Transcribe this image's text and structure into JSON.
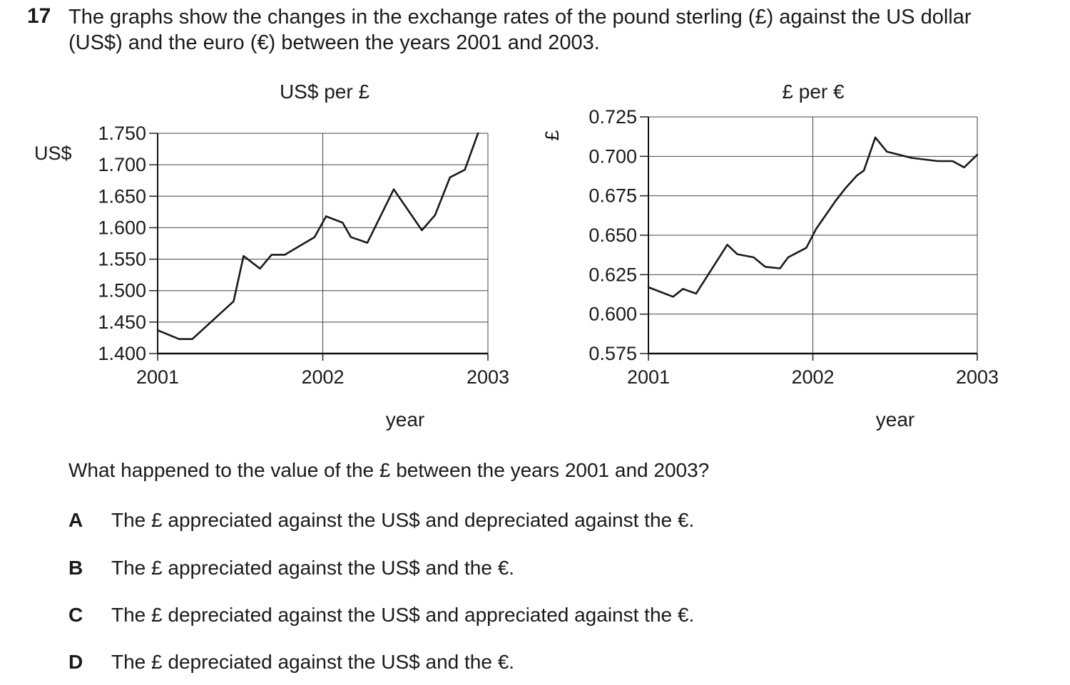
{
  "question": {
    "number": "17",
    "stem": "The graphs show the changes in the exchange rates of the pound sterling (£) against the US dollar (US$) and the euro (€) between the years 2001 and 2003.",
    "prompt": "What happened to the value of the £ between the years 2001 and 2003?",
    "options": [
      {
        "letter": "A",
        "text": "The £ appreciated against the US$ and depreciated against the €."
      },
      {
        "letter": "B",
        "text": "The £ appreciated against the US$ and the €."
      },
      {
        "letter": "C",
        "text": "The £ depreciated against the US$ and appreciated against the €."
      },
      {
        "letter": "D",
        "text": "The £ depreciated against the US$ and the €."
      }
    ]
  },
  "chart_data": [
    {
      "type": "line",
      "title": "US$ per £",
      "ylabel": "US$",
      "xlabel": "year",
      "xlim": [
        2001,
        2003
      ],
      "ylim": [
        1.4,
        1.75
      ],
      "x_ticks": [
        2001,
        2002,
        2003
      ],
      "x_tick_labels": [
        "2001",
        "2002",
        "2003"
      ],
      "y_ticks": [
        1.4,
        1.45,
        1.5,
        1.55,
        1.6,
        1.65,
        1.7,
        1.75
      ],
      "y_tick_labels": [
        "1.400",
        "1.450",
        "1.500",
        "1.550",
        "1.600",
        "1.650",
        "1.700",
        "1.750"
      ],
      "grid": true,
      "x": [
        2001.0,
        2001.13,
        2001.21,
        2001.46,
        2001.52,
        2001.62,
        2001.69,
        2001.77,
        2001.95,
        2002.02,
        2002.12,
        2002.17,
        2002.27,
        2002.43,
        2002.6,
        2002.68,
        2002.77,
        2002.86,
        2002.94
      ],
      "y": [
        1.437,
        1.423,
        1.423,
        1.483,
        1.555,
        1.535,
        1.557,
        1.557,
        1.585,
        1.618,
        1.608,
        1.585,
        1.576,
        1.661,
        1.596,
        1.62,
        1.68,
        1.692,
        1.75
      ]
    },
    {
      "type": "line",
      "title": "£ per €",
      "ylabel": "£",
      "xlabel": "year",
      "xlim": [
        2001,
        2003
      ],
      "ylim": [
        0.575,
        0.725
      ],
      "x_ticks": [
        2001,
        2002,
        2003
      ],
      "x_tick_labels": [
        "2001",
        "2002",
        "2003"
      ],
      "y_ticks": [
        0.575,
        0.6,
        0.625,
        0.65,
        0.675,
        0.7,
        0.725
      ],
      "y_tick_labels": [
        "0.575",
        "0.600",
        "0.625",
        "0.650",
        "0.675",
        "0.700",
        "0.725"
      ],
      "grid": true,
      "x": [
        2001.0,
        2001.15,
        2001.21,
        2001.29,
        2001.48,
        2001.54,
        2001.64,
        2001.71,
        2001.8,
        2001.85,
        2001.96,
        2002.02,
        2002.14,
        2002.2,
        2002.27,
        2002.31,
        2002.38,
        2002.45,
        2002.6,
        2002.76,
        2002.85,
        2002.92,
        2003.0
      ],
      "y": [
        0.617,
        0.611,
        0.616,
        0.613,
        0.644,
        0.638,
        0.636,
        0.63,
        0.629,
        0.636,
        0.642,
        0.654,
        0.672,
        0.68,
        0.688,
        0.691,
        0.712,
        0.703,
        0.699,
        0.697,
        0.697,
        0.693,
        0.701
      ]
    }
  ]
}
